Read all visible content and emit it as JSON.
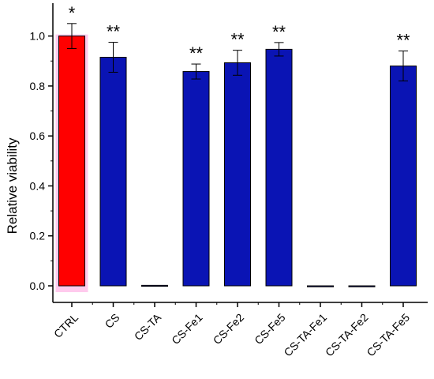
{
  "chart_data": {
    "type": "bar",
    "title": "",
    "xlabel": "",
    "ylabel": "Relative viability",
    "ylim": [
      -0.06,
      1.1
    ],
    "yticks": [
      "0.0",
      "0.2",
      "0.4",
      "0.6",
      "0.8",
      "1.0"
    ],
    "grid": false,
    "categories": [
      "CTRL",
      "CS",
      "CS-TA",
      "CS-Fe1",
      "CS-Fe2",
      "CS-Fe5",
      "CS-TA-Fe1",
      "CS-TA-Fe2",
      "CS-TA-Fe5"
    ],
    "values": [
      1.0,
      0.915,
      0.002,
      0.858,
      0.893,
      0.947,
      0.0,
      -0.003,
      0.88
    ],
    "errors": [
      0.05,
      0.06,
      0.002,
      0.03,
      0.05,
      0.027,
      0.002,
      0.003,
      0.06
    ],
    "significance": [
      "*",
      "**",
      "",
      "**",
      "**",
      "**",
      "",
      "",
      "**"
    ],
    "colors": [
      "#ff0000",
      "#0a14b4",
      "#0a14b4",
      "#0a14b4",
      "#0a14b4",
      "#0a14b4",
      "#0a14b4",
      "#0a14b4",
      "#0a14b4"
    ],
    "control_glow_color": "#ff66cc"
  }
}
